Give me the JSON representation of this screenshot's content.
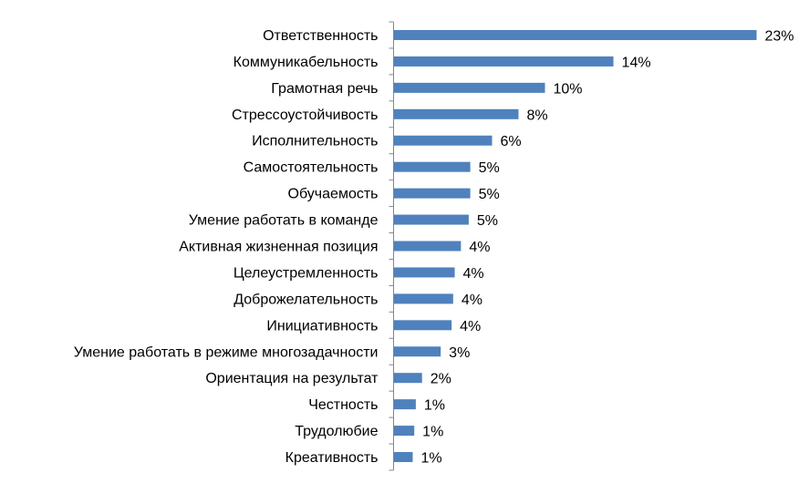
{
  "chart_data": {
    "type": "bar",
    "orientation": "horizontal",
    "categories": [
      "Ответственность",
      "Коммуникабельность",
      "Грамотная речь",
      "Стрессоустойчивость",
      "Исполнительность",
      "Самостоятельность",
      "Обучаемость",
      "Умение работать в команде",
      "Активная жизненная позиция",
      "Целеустремленность",
      "Доброжелательность",
      "Инициативность",
      "Умение работать в режиме многозадачности",
      "Ориентация на результат",
      "Честность",
      "Трудолюбие",
      "Креативность"
    ],
    "values": [
      23.3,
      14.1,
      9.7,
      8.0,
      6.3,
      4.9,
      4.9,
      4.8,
      4.3,
      3.9,
      3.8,
      3.7,
      3.0,
      1.8,
      1.4,
      1.3,
      1.2
    ],
    "data_labels": [
      "23%",
      "14%",
      "10%",
      "8%",
      "6%",
      "5%",
      "5%",
      "5%",
      "4%",
      "4%",
      "4%",
      "4%",
      "3%",
      "2%",
      "1%",
      "1%",
      "1%"
    ],
    "xlim": [
      0,
      23.3
    ],
    "bar_color": "#4f81bd",
    "axis_color": "#868686",
    "grid": false,
    "legend": "none"
  }
}
